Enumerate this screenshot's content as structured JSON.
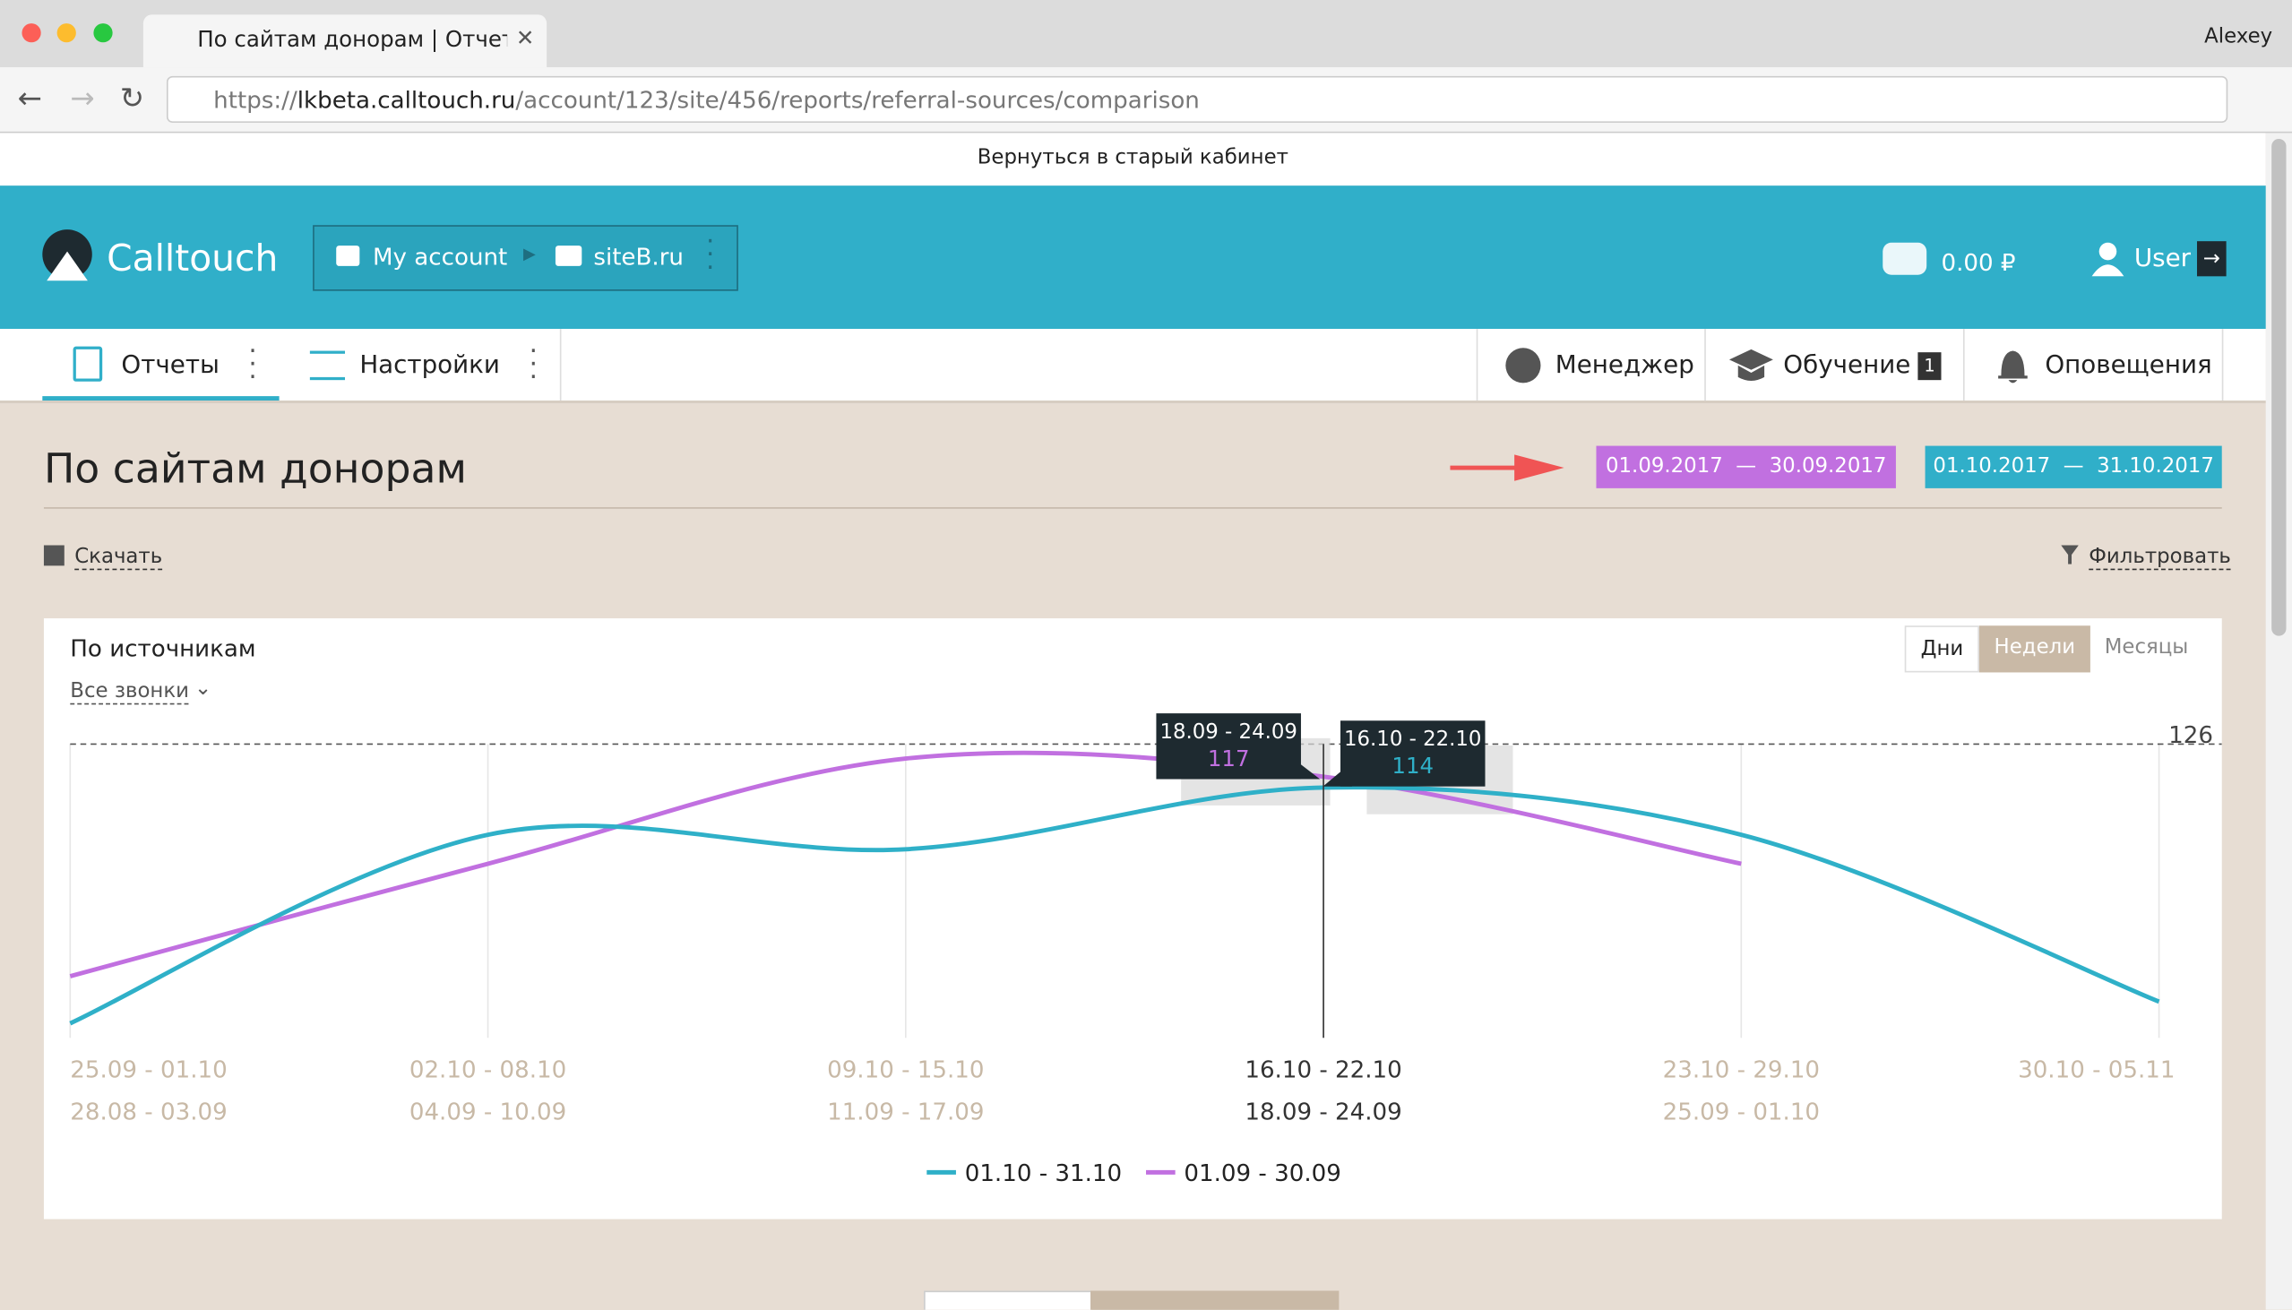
{
  "browser": {
    "tab_title": "По сайтам донорам | Отчеты",
    "user": "Alexey",
    "url": {
      "scheme": "https://",
      "host": "lkbeta.calltouch.ru",
      "path": "/account/123/site/456/reports/referral-sources/comparison"
    }
  },
  "banner": "Вернуться в старый кабинет",
  "header": {
    "brand": "Calltouch",
    "account": "My account",
    "site": "siteB.ru",
    "balance": "0.00 ₽",
    "user": "User"
  },
  "nav": {
    "reports": "Отчеты",
    "settings": "Настройки",
    "manager": "Менеджер",
    "learning": "Обучение",
    "learning_badge": "1",
    "notifications": "Оповещения"
  },
  "page": {
    "title": "По сайтам донорам",
    "period_a": "01.09.2017  —  30.09.2017",
    "period_b": "01.10.2017  —  31.10.2017",
    "download": "Скачать",
    "filter": "Фильтровать"
  },
  "card": {
    "title": "По источникам",
    "calls": "Все звонки",
    "scales": [
      "Дни",
      "Недели",
      "Месяцы"
    ]
  },
  "chart_data": {
    "type": "line",
    "ylim": [
      45,
      126
    ],
    "yticks": [
      126
    ],
    "grid": true,
    "series": [
      {
        "name": "01.10 - 31.10",
        "color": "#2fb0c8",
        "categories": [
          "25.09 - 01.10",
          "02.10 - 08.10",
          "09.10 - 15.10",
          "16.10 - 22.10",
          "23.10 - 29.10",
          "30.10 - 05.11"
        ],
        "values": [
          49,
          101,
          97,
          114,
          101,
          55
        ]
      },
      {
        "name": "01.09 - 30.09",
        "color": "#c170e0",
        "categories": [
          "28.08 - 03.09",
          "04.09 - 10.09",
          "11.09 - 17.09",
          "18.09 - 24.09",
          "25.09 - 01.10",
          null
        ],
        "values": [
          62,
          93,
          122,
          117,
          93,
          null
        ]
      }
    ]
  }
}
